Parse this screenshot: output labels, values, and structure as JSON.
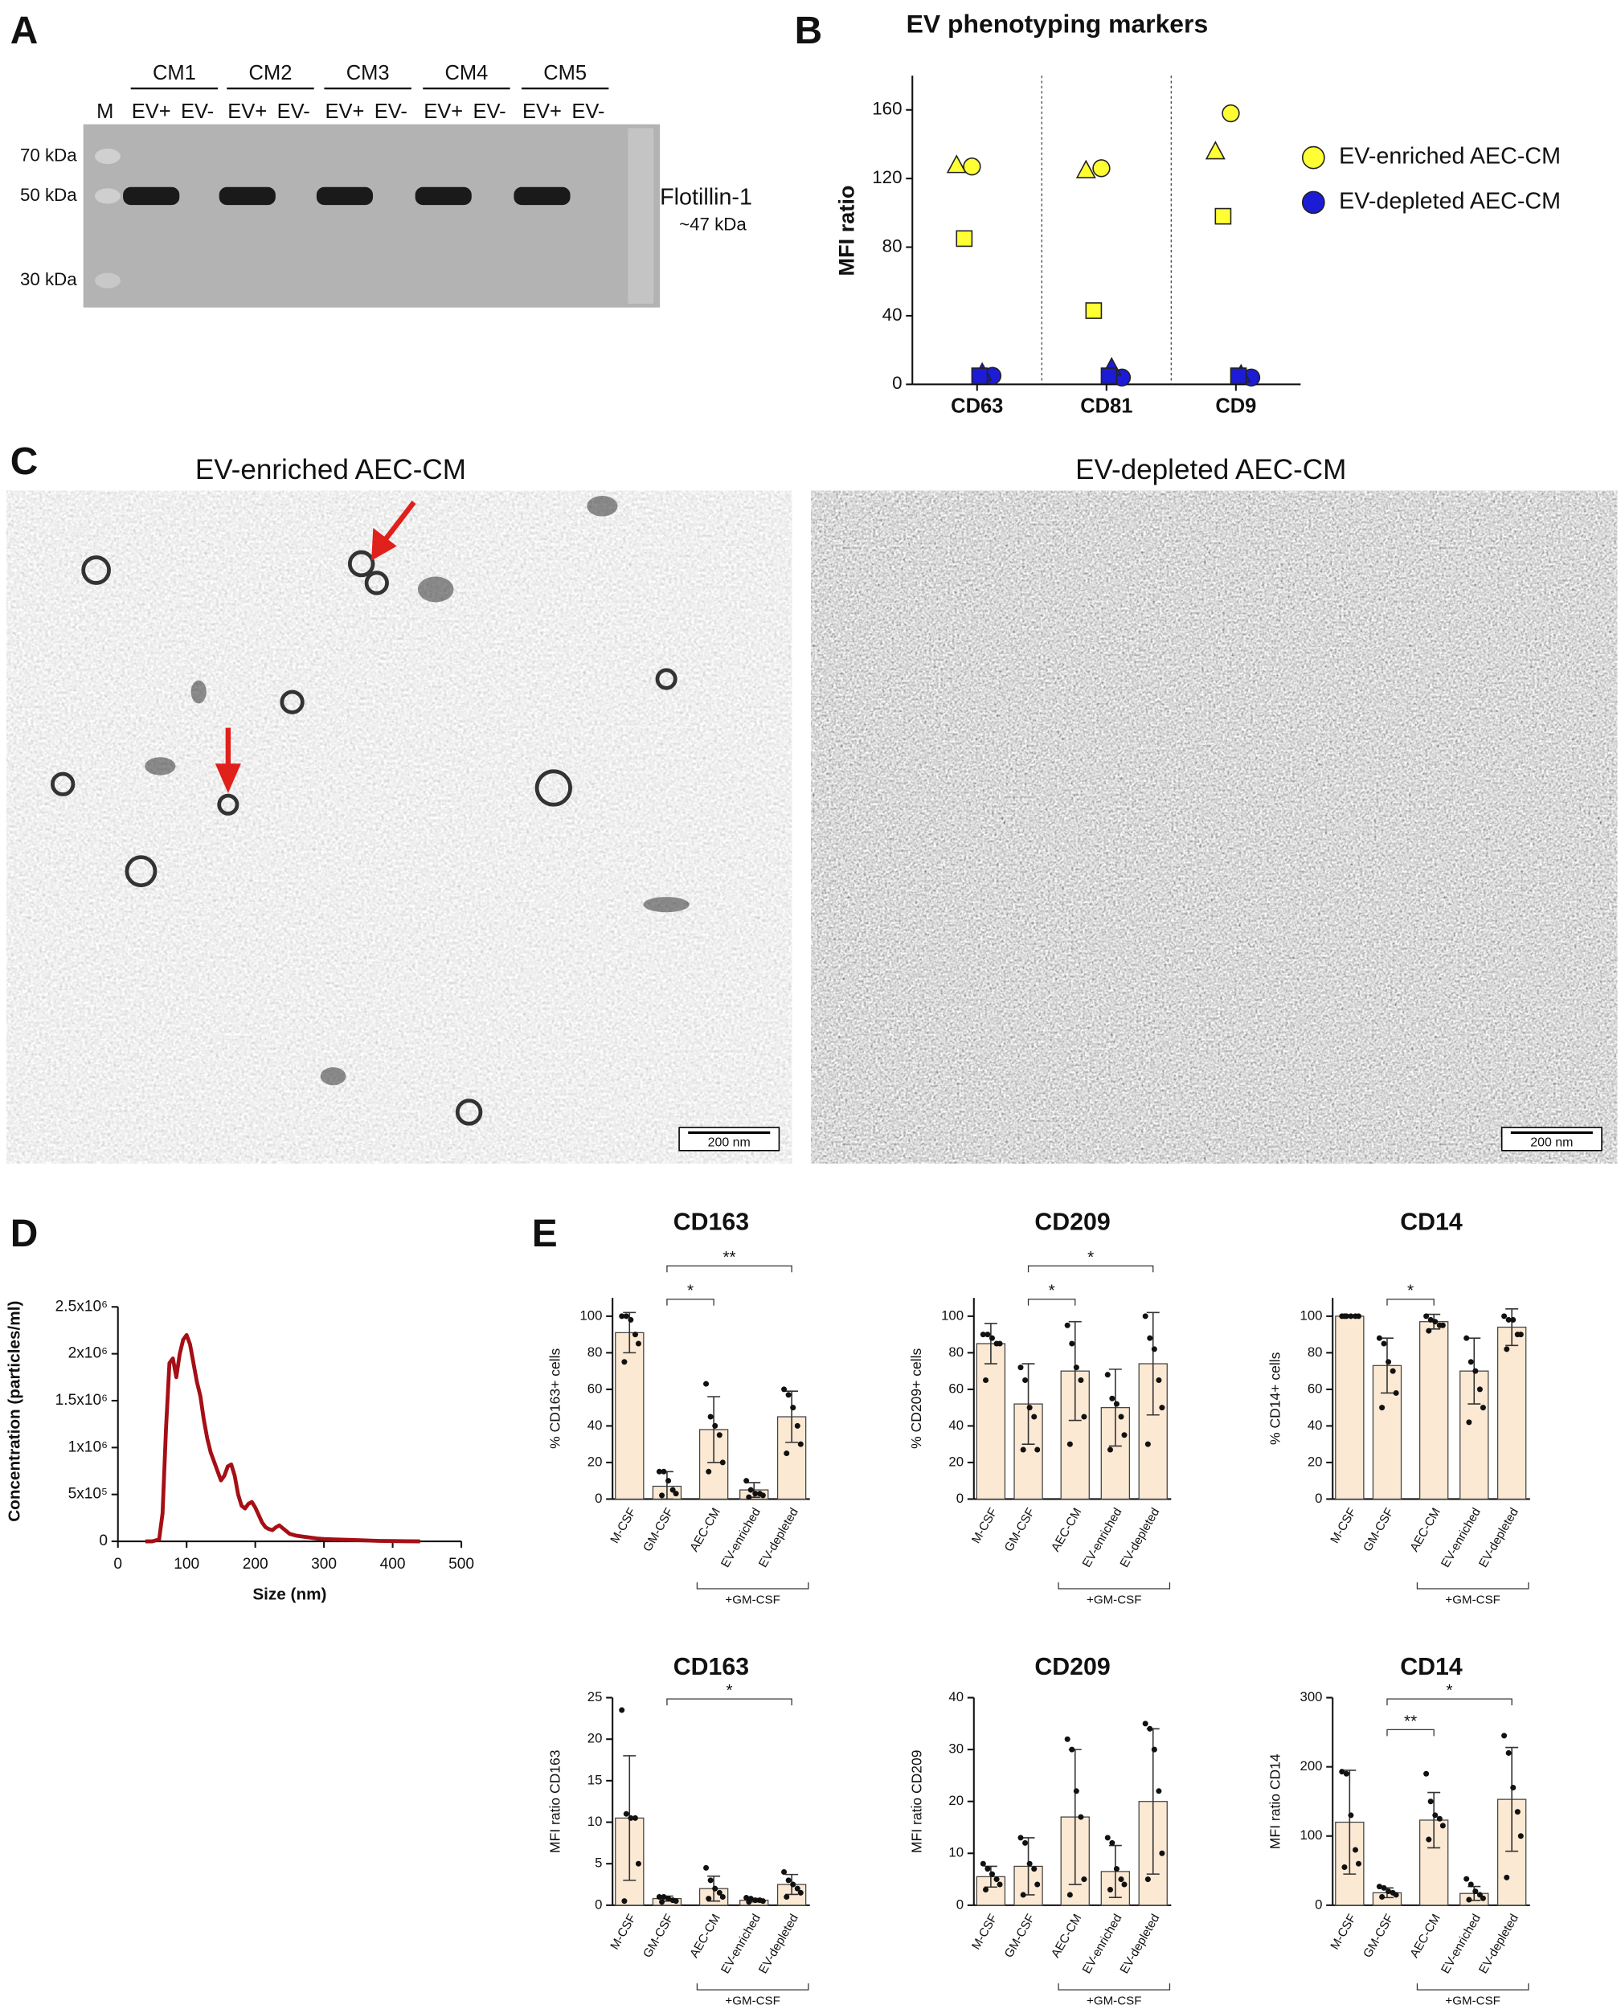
{
  "panel_labels": [
    "A",
    "B",
    "C",
    "D",
    "E"
  ],
  "blot": {
    "marker_lane": "M",
    "groups": [
      "CM1",
      "CM2",
      "CM3",
      "CM4",
      "CM5"
    ],
    "sublanes": [
      [
        "EV+",
        "EV-"
      ],
      [
        "EV+",
        "EV-"
      ],
      [
        "EV+",
        "EV-"
      ],
      [
        "EV+",
        "EV-"
      ],
      [
        "EV+",
        "EV-"
      ]
    ],
    "sizes": [
      "70 kDa",
      "50 kDa",
      "30 kDa"
    ],
    "protein": "Flotillin-1",
    "protein_size": "~47 kDa"
  },
  "tem": {
    "titles": [
      "EV-enriched AEC-CM",
      "EV-depleted AEC-CM"
    ],
    "scale_bars": [
      "200 nm",
      "200 nm"
    ]
  },
  "chart_data": [
    {
      "type": "dot",
      "title": "EV phenotyping markers",
      "ylabel": "MFI ratio",
      "categories": [
        "CD63",
        "CD81",
        "CD9"
      ],
      "markers": [
        "circle",
        "triangle",
        "square"
      ],
      "series": [
        {
          "name": "EV-enriched AEC-CM",
          "color": "#ffff33",
          "values": [
            [
              127,
              128,
              85
            ],
            [
              126,
              125,
              43
            ],
            [
              158,
              136,
              98
            ]
          ]
        },
        {
          "name": "EV-depleted AEC-CM",
          "color": "#1c1cd6",
          "values": [
            [
              5,
              7,
              5
            ],
            [
              4,
              10,
              5
            ],
            [
              4,
              6,
              5
            ]
          ]
        }
      ],
      "ylim": [
        0,
        180
      ],
      "yticks": [
        0,
        40,
        80,
        120,
        160
      ],
      "legend": "right"
    },
    {
      "type": "line",
      "xlabel": "Size (nm)",
      "ylabel": "Concentration (particles/ml)",
      "color": "#a50f15",
      "x": [
        40,
        50,
        60,
        65,
        70,
        75,
        80,
        85,
        90,
        95,
        100,
        105,
        110,
        115,
        120,
        125,
        130,
        135,
        140,
        145,
        150,
        155,
        160,
        165,
        170,
        175,
        180,
        185,
        190,
        195,
        200,
        205,
        210,
        215,
        220,
        225,
        230,
        235,
        240,
        250,
        260,
        270,
        280,
        290,
        300,
        320,
        340,
        360,
        380,
        400,
        420,
        440
      ],
      "values": [
        0,
        0,
        20000,
        300000,
        1200000,
        1900000,
        1950000,
        1750000,
        2000000,
        2150000,
        2200000,
        2100000,
        1900000,
        1700000,
        1550000,
        1300000,
        1100000,
        950000,
        850000,
        750000,
        650000,
        700000,
        800000,
        820000,
        700000,
        500000,
        380000,
        350000,
        400000,
        420000,
        360000,
        280000,
        200000,
        150000,
        130000,
        120000,
        150000,
        170000,
        140000,
        80000,
        60000,
        50000,
        40000,
        30000,
        25000,
        20000,
        15000,
        10000,
        5000,
        3000,
        1000,
        0
      ],
      "xlim": [
        0,
        500
      ],
      "xticks": [
        0,
        100,
        200,
        300,
        400,
        500
      ],
      "ylim": [
        0,
        2500000
      ],
      "yticks": [
        0,
        {
          "value": 500000,
          "label": "5x10⁵"
        },
        {
          "value": 1000000,
          "label": "1x10⁶"
        },
        {
          "value": 1500000,
          "label": "1.5x10⁶"
        },
        {
          "value": 2000000,
          "label": "2x10⁶"
        },
        {
          "value": 2500000,
          "label": "2.5x10⁶"
        }
      ]
    },
    {
      "type": "bar",
      "title": "CD163",
      "ylabel": "% CD163+ cells",
      "color": "#fce9d4",
      "categories": [
        "M-CSF",
        "GM-CSF",
        "AEC-CM",
        "EV-enriched",
        "EV-depleted"
      ],
      "values": [
        91,
        7,
        38,
        5,
        45
      ],
      "errors": [
        11,
        8,
        18,
        4,
        14
      ],
      "points": [
        [
          100,
          100,
          98,
          90,
          85,
          75
        ],
        [
          15,
          15,
          10,
          5,
          3,
          2
        ],
        [
          63,
          45,
          40,
          35,
          20,
          15
        ],
        [
          10,
          5,
          3,
          3,
          2,
          1
        ],
        [
          60,
          57,
          50,
          40,
          30,
          25
        ]
      ],
      "ylim": [
        0,
        110
      ],
      "yticks": [
        0,
        20,
        40,
        60,
        80,
        100
      ],
      "group_label": "+GM-CSF",
      "group_from": 2,
      "group_to": 4,
      "significance": [
        {
          "from": 1,
          "to": 2,
          "label": "*"
        },
        {
          "from": 1,
          "to": 4,
          "label": "**"
        }
      ]
    },
    {
      "type": "bar",
      "title": "CD209",
      "ylabel": "% CD209+ cells",
      "color": "#fce9d4",
      "categories": [
        "M-CSF",
        "GM-CSF",
        "AEC-CM",
        "EV-enriched",
        "EV-depleted"
      ],
      "values": [
        85,
        52,
        70,
        50,
        74
      ],
      "errors": [
        11,
        22,
        27,
        21,
        28
      ],
      "points": [
        [
          90,
          90,
          88,
          85,
          85,
          65
        ],
        [
          72,
          65,
          50,
          45,
          27,
          27
        ],
        [
          95,
          85,
          72,
          65,
          45,
          30
        ],
        [
          68,
          55,
          52,
          45,
          35,
          27
        ],
        [
          100,
          88,
          82,
          65,
          50,
          30
        ]
      ],
      "ylim": [
        0,
        110
      ],
      "yticks": [
        0,
        20,
        40,
        60,
        80,
        100
      ],
      "group_label": "+GM-CSF",
      "group_from": 2,
      "group_to": 4,
      "significance": [
        {
          "from": 1,
          "to": 2,
          "label": "*"
        },
        {
          "from": 1,
          "to": 4,
          "label": "*"
        }
      ]
    },
    {
      "type": "bar",
      "title": "CD14",
      "ylabel": "% CD14+ cells",
      "color": "#fce9d4",
      "categories": [
        "M-CSF",
        "GM-CSF",
        "AEC-CM",
        "EV-enriched",
        "EV-depleted"
      ],
      "values": [
        100,
        73,
        97,
        70,
        94
      ],
      "errors": [
        0.5,
        15,
        4,
        18,
        10
      ],
      "points": [
        [
          100,
          100,
          100,
          100,
          100,
          100
        ],
        [
          88,
          85,
          75,
          70,
          58,
          50
        ],
        [
          100,
          98,
          97,
          95,
          95,
          92
        ],
        [
          88,
          75,
          70,
          60,
          50,
          42
        ],
        [
          100,
          98,
          98,
          90,
          90,
          82
        ]
      ],
      "ylim": [
        0,
        110
      ],
      "yticks": [
        0,
        20,
        40,
        60,
        80,
        100
      ],
      "group_label": "+GM-CSF",
      "group_from": 2,
      "group_to": 4,
      "significance": [
        {
          "from": 1,
          "to": 2,
          "label": "*"
        }
      ]
    },
    {
      "type": "bar",
      "title": "CD163",
      "ylabel": "MFI ratio CD163",
      "color": "#fce9d4",
      "categories": [
        "M-CSF",
        "GM-CSF",
        "AEC-CM",
        "EV-enriched",
        "EV-depleted"
      ],
      "values": [
        10.5,
        0.8,
        2,
        0.6,
        2.5
      ],
      "errors": [
        7.5,
        0.3,
        1.5,
        0.2,
        1.2
      ],
      "points": [
        [
          23.5,
          11,
          10.5,
          10.5,
          5,
          0.5
        ],
        [
          1,
          1,
          0.8,
          0.6,
          0.5,
          0.4
        ],
        [
          4.5,
          3,
          2,
          1.5,
          1,
          0.8
        ],
        [
          0.9,
          0.8,
          0.6,
          0.6,
          0.5,
          0.4
        ],
        [
          4,
          3,
          2.5,
          2,
          1.5,
          1
        ]
      ],
      "ylim": [
        0,
        25
      ],
      "yticks": [
        0,
        5,
        10,
        15,
        20,
        25
      ],
      "group_label": "+GM-CSF",
      "group_from": 2,
      "group_to": 4,
      "significance": [
        {
          "from": 1,
          "to": 4,
          "label": "*"
        }
      ]
    },
    {
      "type": "bar",
      "title": "CD209",
      "ylabel": "MFI ratio CD209",
      "color": "#fce9d4",
      "categories": [
        "M-CSF",
        "GM-CSF",
        "AEC-CM",
        "EV-enriched",
        "EV-depleted"
      ],
      "values": [
        5.5,
        7.5,
        17,
        6.5,
        20
      ],
      "errors": [
        2,
        5.5,
        13,
        5,
        14
      ],
      "points": [
        [
          8,
          7,
          6,
          5,
          4,
          3
        ],
        [
          13,
          12,
          8,
          7,
          4,
          2
        ],
        [
          32,
          30,
          22,
          17,
          5,
          2
        ],
        [
          13,
          12,
          7,
          5,
          4,
          3
        ],
        [
          35,
          34,
          30,
          22,
          10,
          5
        ]
      ],
      "ylim": [
        0,
        40
      ],
      "yticks": [
        0,
        10,
        20,
        30,
        40
      ],
      "group_label": "+GM-CSF",
      "group_from": 2,
      "group_to": 4
    },
    {
      "type": "bar",
      "title": "CD14",
      "ylabel": "MFI ratio CD14",
      "color": "#fce9d4",
      "categories": [
        "M-CSF",
        "GM-CSF",
        "AEC-CM",
        "EV-enriched",
        "EV-depleted"
      ],
      "values": [
        120,
        18,
        123,
        17,
        153
      ],
      "errors": [
        75,
        7,
        40,
        10,
        75
      ],
      "points": [
        [
          193,
          190,
          130,
          80,
          60,
          55
        ],
        [
          27,
          25,
          20,
          18,
          15,
          12
        ],
        [
          190,
          150,
          130,
          125,
          115,
          95
        ],
        [
          38,
          30,
          20,
          15,
          10,
          8
        ],
        [
          245,
          220,
          170,
          135,
          100,
          40
        ]
      ],
      "ylim": [
        0,
        300
      ],
      "yticks": [
        0,
        100,
        200,
        300
      ],
      "group_label": "+GM-CSF",
      "group_from": 2,
      "group_to": 4,
      "significance": [
        {
          "from": 1,
          "to": 2,
          "label": "**"
        },
        {
          "from": 1,
          "to": 4,
          "label": "*"
        }
      ]
    }
  ]
}
